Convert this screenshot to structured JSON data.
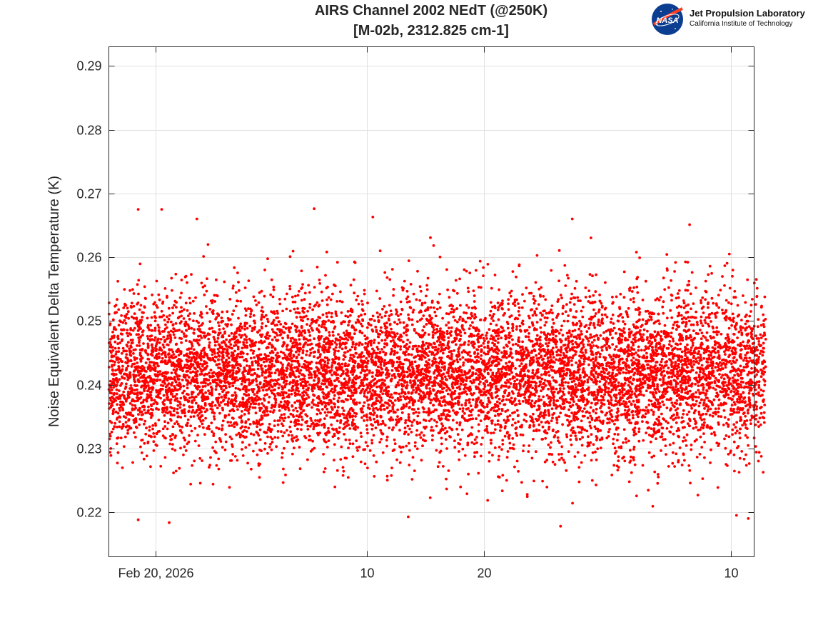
{
  "logo": {
    "name": "Jet Propulsion Laboratory",
    "subtitle": "California Institute of Technology",
    "badge": "NASA"
  },
  "chart_data": {
    "type": "scatter",
    "title": "AIRS Channel 2002 NEdT (@250K)",
    "subtitle": "[M-02b, 2312.825 cm-1]",
    "xlabel": "",
    "ylabel": "Noise Equivalent Delta Temperature (K)",
    "xlim": [
      "2026-02-16",
      "2026-04-12"
    ],
    "ylim": [
      0.213,
      0.293
    ],
    "x_ticks": [
      {
        "date": "2026-02-20",
        "label": "Feb 20, 2026"
      },
      {
        "date": "2026-03-10",
        "label": "10"
      },
      {
        "date": "2026-03-20",
        "label": "20"
      },
      {
        "date": "2026-04-10",
        "label": "10"
      }
    ],
    "y_ticks": [
      0.22,
      0.23,
      0.24,
      0.25,
      0.26,
      0.27,
      0.28,
      0.29
    ],
    "grid": true,
    "marker_color": "#ff0000",
    "series": [
      {
        "x_start": "2026-02-16",
        "x_end": "2026-04-12",
        "center": 0.2418,
        "std": 0.0062,
        "y_min": 0.2178,
        "y_max": 0.2676,
        "point_count": 9500,
        "points": [
          {
            "x": "2026-02-16",
            "y": 0.24
          },
          {
            "x": "2026-02-18",
            "y": 0.2188
          },
          {
            "x": "2026-02-18",
            "y": 0.2675
          },
          {
            "x": "2026-02-20",
            "y": 0.2675
          },
          {
            "x": "2026-02-23",
            "y": 0.266
          },
          {
            "x": "2026-03-05",
            "y": 0.2676
          },
          {
            "x": "2026-03-10",
            "y": 0.2663
          },
          {
            "x": "2026-03-27",
            "y": 0.266
          },
          {
            "x": "2026-03-26",
            "y": 0.2178
          },
          {
            "x": "2026-04-06",
            "y": 0.2651
          },
          {
            "x": "2026-04-10",
            "y": 0.2195
          },
          {
            "x": "2026-04-11",
            "y": 0.219
          }
        ]
      }
    ]
  }
}
